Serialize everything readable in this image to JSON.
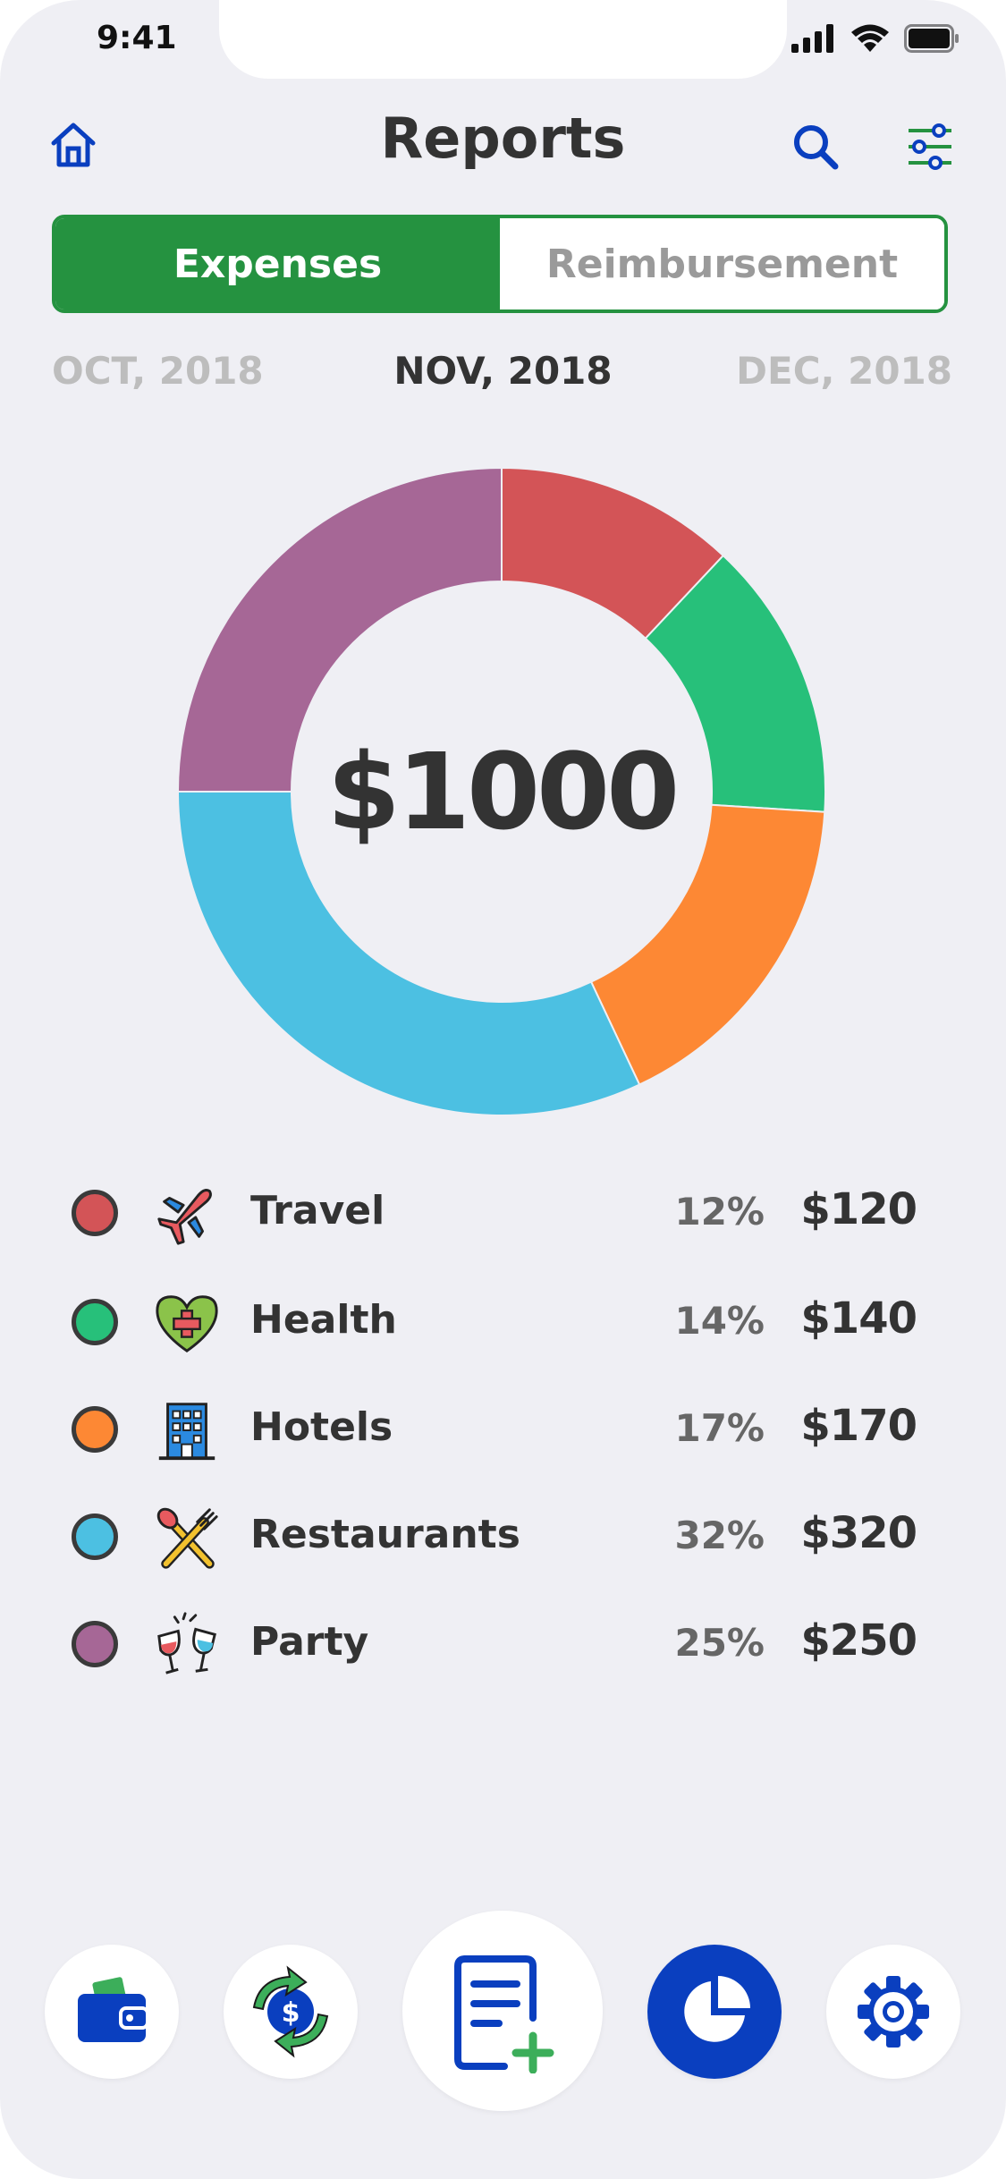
{
  "status": {
    "time": "9:41"
  },
  "header": {
    "title": "Reports",
    "home_icon": "home-icon",
    "search_icon": "search-icon",
    "filter_icon": "filter-sliders-icon"
  },
  "tabs": [
    {
      "label": "Expenses",
      "active": true
    },
    {
      "label": "Reimbursement",
      "active": false
    }
  ],
  "months": {
    "prev": "OCT, 2018",
    "current": "NOV, 2018",
    "next": "DEC, 2018"
  },
  "chart_data": {
    "type": "pie",
    "center_label": "$1000",
    "categories": [
      "Travel",
      "Health",
      "Hotels",
      "Restaurants",
      "Party"
    ],
    "values": [
      120,
      140,
      170,
      320,
      250
    ],
    "colors": [
      "#d35457",
      "#27c07a",
      "#fd8834",
      "#4cc0e2",
      "#a66796"
    ]
  },
  "legend": [
    {
      "label": "Travel",
      "percent": "12%",
      "amount": "$120",
      "color": "#d35457",
      "icon": "airplane-icon"
    },
    {
      "label": "Health",
      "percent": "14%",
      "amount": "$140",
      "color": "#27c07a",
      "icon": "heart-medical-icon"
    },
    {
      "label": "Hotels",
      "percent": "17%",
      "amount": "$170",
      "color": "#fd8834",
      "icon": "hotel-building-icon"
    },
    {
      "label": "Restaurants",
      "percent": "32%",
      "amount": "$320",
      "color": "#4cc0e2",
      "icon": "fork-spoon-icon"
    },
    {
      "label": "Party",
      "percent": "25%",
      "amount": "$250",
      "color": "#a66796",
      "icon": "wine-glasses-icon"
    }
  ],
  "bottom_nav": [
    {
      "icon": "wallet-icon"
    },
    {
      "icon": "currency-exchange-icon"
    },
    {
      "icon": "add-report-icon"
    },
    {
      "icon": "pie-chart-icon",
      "active": true
    },
    {
      "icon": "gear-icon"
    }
  ],
  "colors": {
    "accent_green": "#259240",
    "accent_blue": "#0a3fbf"
  }
}
